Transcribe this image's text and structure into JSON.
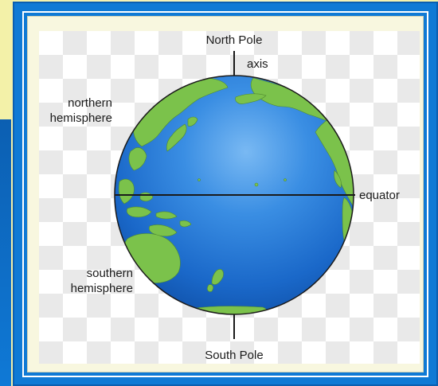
{
  "labels": {
    "north_pole": "North Pole",
    "axis": "axis",
    "northern_line1": "northern",
    "northern_line2": "hemisphere",
    "equator": "equator",
    "southern_line1": "southern",
    "southern_line2": "hemisphere",
    "south_pole": "South Pole"
  },
  "colors": {
    "frame_blue": "#0f7ad5",
    "ocean": "#1f72d2",
    "land": "#7bc24b",
    "background_yellow": "#f7f4c2"
  }
}
